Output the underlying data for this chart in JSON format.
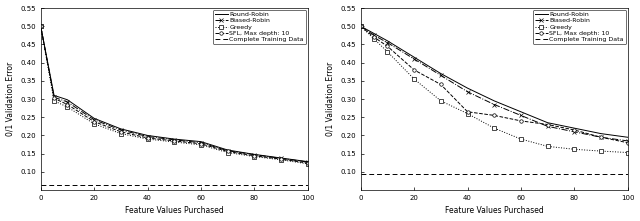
{
  "left": {
    "xlabel": "Feature Values Purchased",
    "ylabel": "0/1 Validation Error",
    "xlim": [
      0,
      100
    ],
    "ylim": [
      0.05,
      0.55
    ],
    "yticks": [
      0.1,
      0.15,
      0.2,
      0.25,
      0.3,
      0.35,
      0.4,
      0.45,
      0.5,
      0.55
    ],
    "xticks": [
      0,
      20,
      40,
      60,
      80,
      100
    ],
    "baseline": 0.065,
    "x": [
      0,
      5,
      10,
      20,
      30,
      40,
      50,
      60,
      70,
      80,
      90,
      100
    ],
    "round_robin": [
      0.5,
      0.31,
      0.298,
      0.247,
      0.218,
      0.2,
      0.19,
      0.183,
      0.16,
      0.148,
      0.138,
      0.128
    ],
    "biased_robin": [
      0.5,
      0.305,
      0.292,
      0.243,
      0.215,
      0.197,
      0.188,
      0.18,
      0.158,
      0.147,
      0.137,
      0.127
    ],
    "greedy": [
      0.5,
      0.295,
      0.278,
      0.232,
      0.205,
      0.19,
      0.182,
      0.174,
      0.153,
      0.142,
      0.133,
      0.122
    ],
    "sfl": [
      0.5,
      0.302,
      0.285,
      0.238,
      0.21,
      0.193,
      0.185,
      0.177,
      0.156,
      0.144,
      0.135,
      0.124
    ]
  },
  "right": {
    "xlabel": "Feature Values Purchased",
    "ylabel": "0/1 Validation Error",
    "xlim": [
      0,
      100
    ],
    "ylim": [
      0.05,
      0.55
    ],
    "yticks": [
      0.1,
      0.15,
      0.2,
      0.25,
      0.3,
      0.35,
      0.4,
      0.45,
      0.5,
      0.55
    ],
    "xticks": [
      0,
      20,
      40,
      60,
      80,
      100
    ],
    "baseline": 0.095,
    "x": [
      0,
      5,
      10,
      20,
      30,
      40,
      50,
      60,
      70,
      80,
      90,
      100
    ],
    "round_robin": [
      0.5,
      0.48,
      0.46,
      0.415,
      0.37,
      0.33,
      0.295,
      0.265,
      0.235,
      0.22,
      0.205,
      0.195
    ],
    "biased_robin": [
      0.5,
      0.475,
      0.455,
      0.41,
      0.365,
      0.32,
      0.285,
      0.255,
      0.225,
      0.21,
      0.195,
      0.185
    ],
    "greedy": [
      0.5,
      0.465,
      0.43,
      0.355,
      0.295,
      0.26,
      0.22,
      0.19,
      0.17,
      0.162,
      0.157,
      0.153
    ],
    "sfl": [
      0.5,
      0.47,
      0.445,
      0.38,
      0.34,
      0.265,
      0.255,
      0.24,
      0.23,
      0.215,
      0.195,
      0.18
    ]
  },
  "legend_labels": [
    "Round-Robin",
    "Biased-Robin",
    "Greedy",
    "SFL, Max depth: 10",
    "Complete Training Data"
  ],
  "fontsize": 5.5,
  "legend_fontsize": 4.5,
  "tick_fontsize": 5
}
